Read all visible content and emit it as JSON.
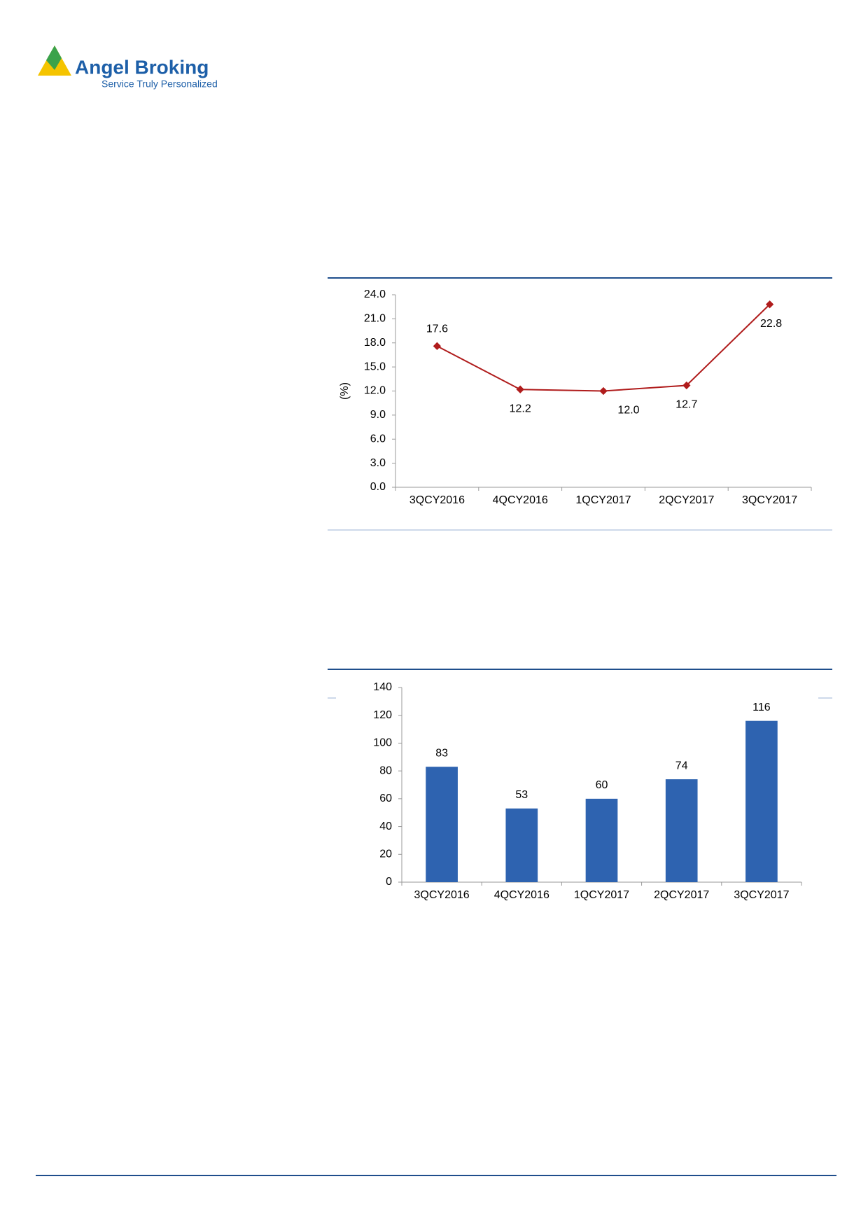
{
  "logo": {
    "name": "Angel Broking",
    "tagline": "Service Truly Personalized"
  },
  "chart_data": [
    {
      "type": "line",
      "y_label": "(%)",
      "categories": [
        "3QCY2016",
        "4QCY2016",
        "1QCY2017",
        "2QCY2017",
        "3QCY2017"
      ],
      "values": [
        17.6,
        12.2,
        12.0,
        12.7,
        22.8
      ],
      "value_labels": [
        "17.6",
        "12.2",
        "12.0",
        "12.7",
        "22.8"
      ],
      "color": "#b01c1c",
      "ylim": [
        0,
        24
      ],
      "yticks": [
        {
          "value": 0,
          "label": "0.0"
        },
        {
          "value": 3,
          "label": "3.0"
        },
        {
          "value": 6,
          "label": "6.0"
        },
        {
          "value": 9,
          "label": "9.0"
        },
        {
          "value": 12,
          "label": "12.0"
        },
        {
          "value": 15,
          "label": "15.0"
        },
        {
          "value": 18,
          "label": "18.0"
        },
        {
          "value": 21,
          "label": "21.0"
        },
        {
          "value": 24,
          "label": "24.0"
        }
      ]
    },
    {
      "type": "bar",
      "categories": [
        "3QCY2016",
        "4QCY2016",
        "1QCY2017",
        "2QCY2017",
        "3QCY2017"
      ],
      "values": [
        83,
        53,
        60,
        74,
        116
      ],
      "color": "#2e63b0",
      "ylim": [
        0,
        140
      ],
      "yticks": [
        0,
        20,
        40,
        60,
        80,
        100,
        120,
        140
      ]
    }
  ]
}
